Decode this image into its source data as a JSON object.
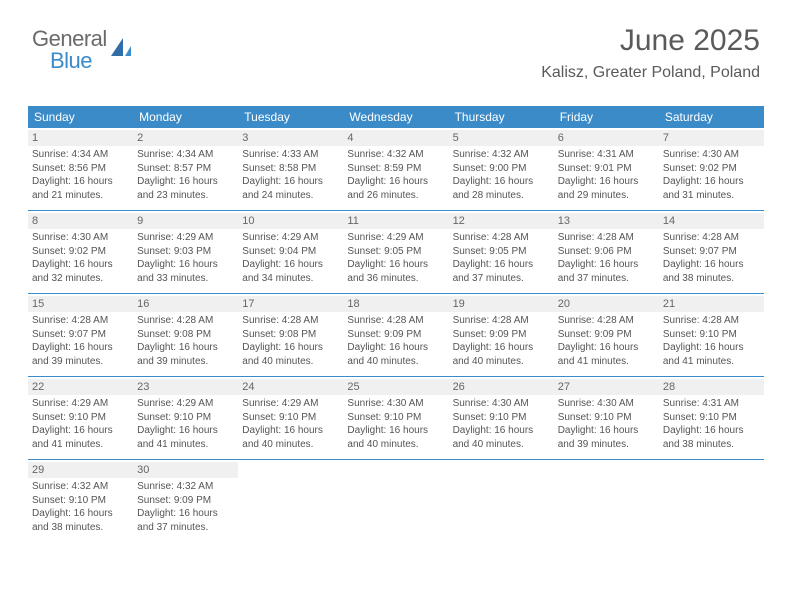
{
  "logo": {
    "word1": "General",
    "word2": "Blue"
  },
  "title": {
    "month": "June 2025",
    "location": "Kalisz, Greater Poland, Poland"
  },
  "colors": {
    "header_bg": "#3b8bc9",
    "header_text": "#ffffff",
    "daynum_bg": "#f0f0f0",
    "text": "#555555",
    "rule": "#3b8bc9",
    "background": "#ffffff"
  },
  "day_headers": [
    "Sunday",
    "Monday",
    "Tuesday",
    "Wednesday",
    "Thursday",
    "Friday",
    "Saturday"
  ],
  "weeks": [
    [
      {
        "n": "1",
        "sr": "4:34 AM",
        "ss": "8:56 PM",
        "dl": "16 hours and 21 minutes."
      },
      {
        "n": "2",
        "sr": "4:34 AM",
        "ss": "8:57 PM",
        "dl": "16 hours and 23 minutes."
      },
      {
        "n": "3",
        "sr": "4:33 AM",
        "ss": "8:58 PM",
        "dl": "16 hours and 24 minutes."
      },
      {
        "n": "4",
        "sr": "4:32 AM",
        "ss": "8:59 PM",
        "dl": "16 hours and 26 minutes."
      },
      {
        "n": "5",
        "sr": "4:32 AM",
        "ss": "9:00 PM",
        "dl": "16 hours and 28 minutes."
      },
      {
        "n": "6",
        "sr": "4:31 AM",
        "ss": "9:01 PM",
        "dl": "16 hours and 29 minutes."
      },
      {
        "n": "7",
        "sr": "4:30 AM",
        "ss": "9:02 PM",
        "dl": "16 hours and 31 minutes."
      }
    ],
    [
      {
        "n": "8",
        "sr": "4:30 AM",
        "ss": "9:02 PM",
        "dl": "16 hours and 32 minutes."
      },
      {
        "n": "9",
        "sr": "4:29 AM",
        "ss": "9:03 PM",
        "dl": "16 hours and 33 minutes."
      },
      {
        "n": "10",
        "sr": "4:29 AM",
        "ss": "9:04 PM",
        "dl": "16 hours and 34 minutes."
      },
      {
        "n": "11",
        "sr": "4:29 AM",
        "ss": "9:05 PM",
        "dl": "16 hours and 36 minutes."
      },
      {
        "n": "12",
        "sr": "4:28 AM",
        "ss": "9:05 PM",
        "dl": "16 hours and 37 minutes."
      },
      {
        "n": "13",
        "sr": "4:28 AM",
        "ss": "9:06 PM",
        "dl": "16 hours and 37 minutes."
      },
      {
        "n": "14",
        "sr": "4:28 AM",
        "ss": "9:07 PM",
        "dl": "16 hours and 38 minutes."
      }
    ],
    [
      {
        "n": "15",
        "sr": "4:28 AM",
        "ss": "9:07 PM",
        "dl": "16 hours and 39 minutes."
      },
      {
        "n": "16",
        "sr": "4:28 AM",
        "ss": "9:08 PM",
        "dl": "16 hours and 39 minutes."
      },
      {
        "n": "17",
        "sr": "4:28 AM",
        "ss": "9:08 PM",
        "dl": "16 hours and 40 minutes."
      },
      {
        "n": "18",
        "sr": "4:28 AM",
        "ss": "9:09 PM",
        "dl": "16 hours and 40 minutes."
      },
      {
        "n": "19",
        "sr": "4:28 AM",
        "ss": "9:09 PM",
        "dl": "16 hours and 40 minutes."
      },
      {
        "n": "20",
        "sr": "4:28 AM",
        "ss": "9:09 PM",
        "dl": "16 hours and 41 minutes."
      },
      {
        "n": "21",
        "sr": "4:28 AM",
        "ss": "9:10 PM",
        "dl": "16 hours and 41 minutes."
      }
    ],
    [
      {
        "n": "22",
        "sr": "4:29 AM",
        "ss": "9:10 PM",
        "dl": "16 hours and 41 minutes."
      },
      {
        "n": "23",
        "sr": "4:29 AM",
        "ss": "9:10 PM",
        "dl": "16 hours and 41 minutes."
      },
      {
        "n": "24",
        "sr": "4:29 AM",
        "ss": "9:10 PM",
        "dl": "16 hours and 40 minutes."
      },
      {
        "n": "25",
        "sr": "4:30 AM",
        "ss": "9:10 PM",
        "dl": "16 hours and 40 minutes."
      },
      {
        "n": "26",
        "sr": "4:30 AM",
        "ss": "9:10 PM",
        "dl": "16 hours and 40 minutes."
      },
      {
        "n": "27",
        "sr": "4:30 AM",
        "ss": "9:10 PM",
        "dl": "16 hours and 39 minutes."
      },
      {
        "n": "28",
        "sr": "4:31 AM",
        "ss": "9:10 PM",
        "dl": "16 hours and 38 minutes."
      }
    ],
    [
      {
        "n": "29",
        "sr": "4:32 AM",
        "ss": "9:10 PM",
        "dl": "16 hours and 38 minutes."
      },
      {
        "n": "30",
        "sr": "4:32 AM",
        "ss": "9:09 PM",
        "dl": "16 hours and 37 minutes."
      },
      null,
      null,
      null,
      null,
      null
    ]
  ],
  "labels": {
    "sunrise": "Sunrise:",
    "sunset": "Sunset:",
    "daylight": "Daylight:"
  }
}
